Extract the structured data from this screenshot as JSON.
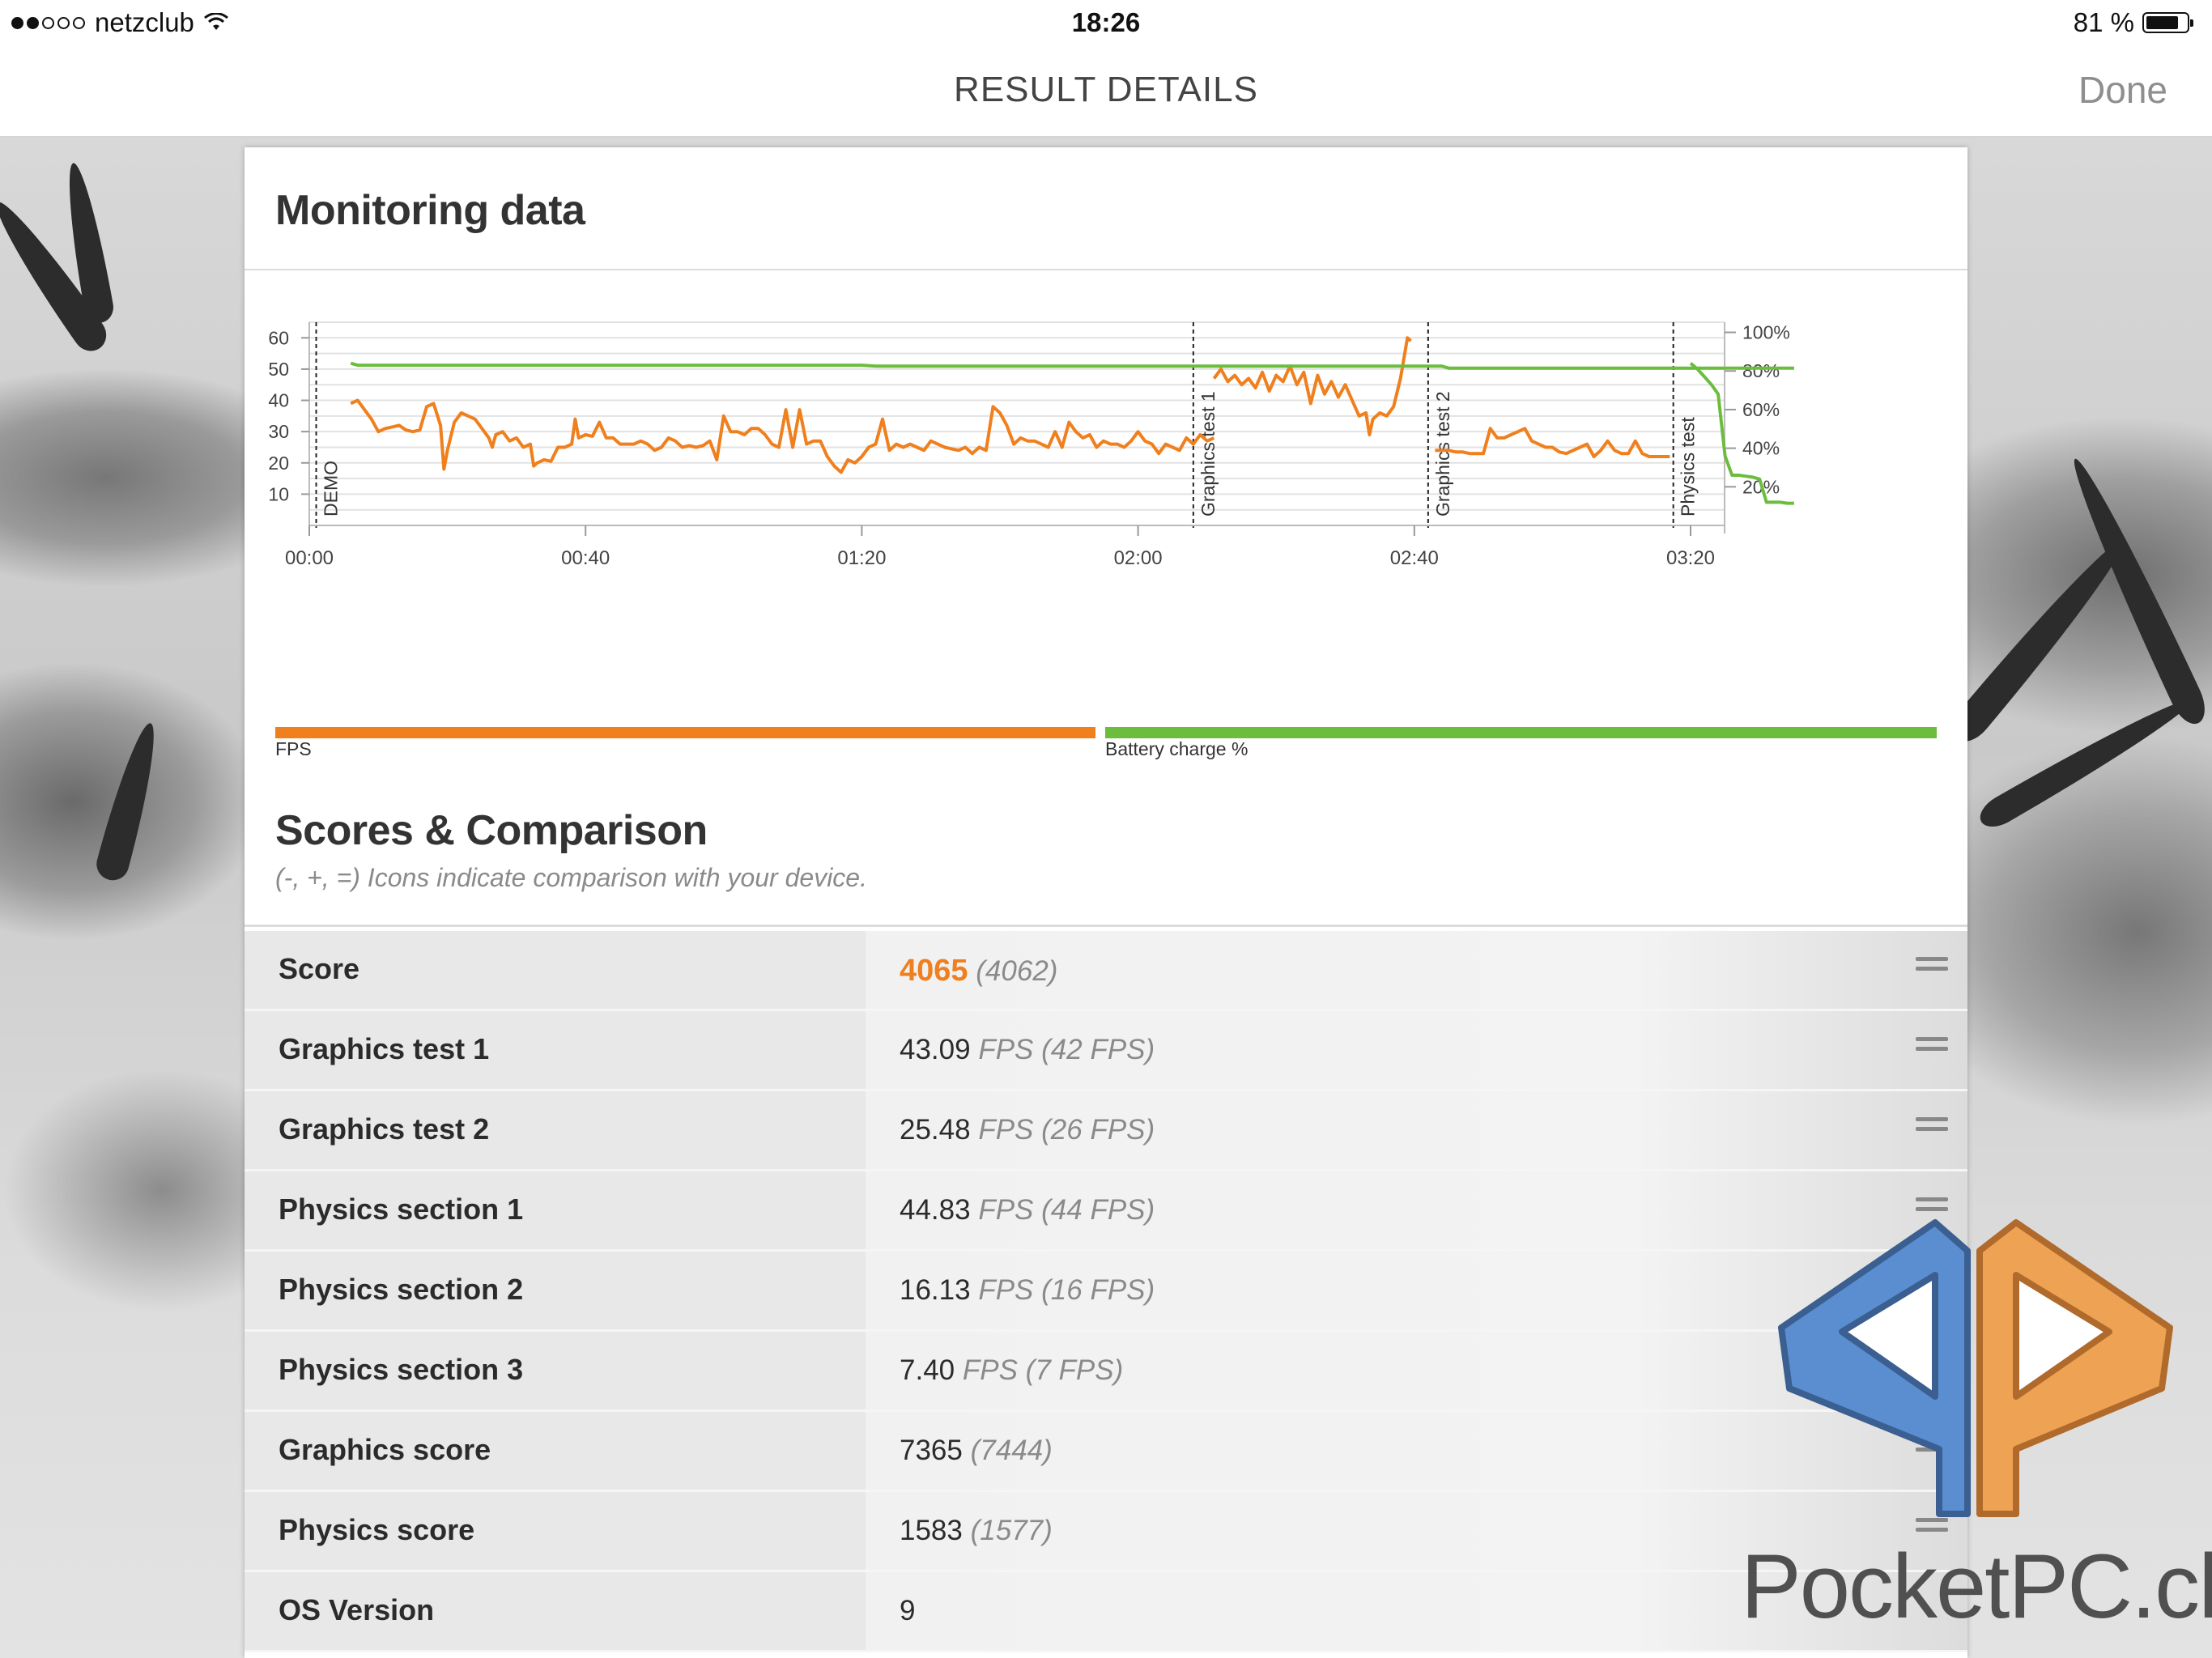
{
  "status_bar": {
    "carrier": "netzclub",
    "time": "18:26",
    "battery_text": "81 %",
    "battery_level": 0.81,
    "signal_bars_filled": 2,
    "signal_bars_total": 5
  },
  "nav": {
    "title": "RESULT DETAILS",
    "done_label": "Done"
  },
  "monitoring": {
    "heading": "Monitoring data",
    "fps_legend": "FPS",
    "battery_legend": "Battery charge %",
    "fps_color": "#f07f1d",
    "battery_color": "#6cbd3e"
  },
  "chart_data": {
    "type": "line",
    "x_unit": "mm:ss",
    "x_ticks": [
      "00:00",
      "00:40",
      "01:20",
      "02:00",
      "02:40",
      "03:20"
    ],
    "y_left_ticks": [
      "10",
      "20",
      "30",
      "40",
      "50",
      "60"
    ],
    "y_right_ticks": [
      "20%",
      "40%",
      "60%",
      "80%",
      "100%"
    ],
    "ylim_left": [
      0,
      65
    ],
    "ylim_right": [
      0,
      100
    ],
    "xlim_seconds": [
      0,
      215
    ],
    "markers": [
      {
        "label": "DEMO",
        "t": 1
      },
      {
        "label": "Graphics test 1",
        "t": 128
      },
      {
        "label": "Graphics test 2",
        "t": 162
      },
      {
        "label": "Physics test",
        "t": 197.5
      }
    ],
    "series": [
      {
        "name": "FPS",
        "axis": "left",
        "segments": [
          [
            [
              6,
              39
            ],
            [
              7,
              40
            ],
            [
              8,
              37
            ],
            [
              9,
              34
            ],
            [
              10,
              30
            ],
            [
              11,
              31
            ],
            [
              12,
              31.5
            ],
            [
              13,
              32
            ],
            [
              14,
              30.5
            ],
            [
              15,
              30
            ],
            [
              16,
              30.5
            ],
            [
              17,
              38
            ],
            [
              18,
              39
            ],
            [
              19,
              32
            ],
            [
              19.5,
              18
            ],
            [
              20,
              24
            ],
            [
              21,
              33
            ],
            [
              22,
              36
            ],
            [
              23,
              35
            ],
            [
              24,
              34
            ],
            [
              25,
              31
            ],
            [
              26,
              28
            ],
            [
              26.5,
              25
            ],
            [
              27,
              29
            ],
            [
              28,
              30
            ],
            [
              29,
              27
            ],
            [
              30,
              28
            ],
            [
              31,
              25
            ],
            [
              32,
              26
            ],
            [
              32.5,
              19
            ],
            [
              33,
              20
            ],
            [
              34,
              21
            ],
            [
              35,
              20.5
            ],
            [
              36,
              25
            ],
            [
              37,
              25
            ],
            [
              38,
              26
            ],
            [
              38.5,
              34
            ],
            [
              39,
              28
            ],
            [
              40,
              29
            ],
            [
              41,
              28.5
            ],
            [
              42,
              33
            ],
            [
              43,
              28
            ],
            [
              44,
              28
            ],
            [
              45,
              26
            ],
            [
              46,
              26
            ],
            [
              47,
              26
            ],
            [
              48,
              27
            ],
            [
              49,
              26
            ],
            [
              50,
              24
            ],
            [
              51,
              25
            ],
            [
              52,
              28
            ],
            [
              53,
              27
            ],
            [
              54,
              25
            ],
            [
              55,
              25.5
            ],
            [
              56,
              25
            ],
            [
              57,
              25.5
            ],
            [
              58,
              27
            ],
            [
              59,
              21
            ],
            [
              60,
              35
            ],
            [
              61,
              30
            ],
            [
              62,
              30
            ],
            [
              63,
              29
            ],
            [
              64,
              31
            ],
            [
              65,
              31
            ],
            [
              66,
              29
            ],
            [
              67,
              26
            ],
            [
              68,
              25
            ],
            [
              69,
              37
            ],
            [
              70,
              25
            ],
            [
              71,
              37
            ],
            [
              72,
              26
            ],
            [
              73,
              27
            ],
            [
              74,
              27
            ],
            [
              75,
              22
            ],
            [
              76,
              19
            ],
            [
              77,
              17
            ],
            [
              78,
              21
            ],
            [
              79,
              20
            ],
            [
              80,
              22
            ],
            [
              81,
              25
            ],
            [
              82,
              26
            ],
            [
              83,
              34
            ],
            [
              84,
              24
            ],
            [
              85,
              26
            ],
            [
              86,
              25
            ],
            [
              87,
              26
            ],
            [
              88,
              25
            ],
            [
              89,
              24
            ],
            [
              90,
              27
            ],
            [
              91,
              26
            ],
            [
              92,
              25
            ],
            [
              93,
              24.5
            ],
            [
              94,
              24
            ],
            [
              95,
              25
            ],
            [
              96,
              23
            ],
            [
              97,
              25
            ],
            [
              98,
              24
            ],
            [
              99,
              38
            ],
            [
              100,
              36
            ],
            [
              101,
              32
            ],
            [
              102,
              26
            ],
            [
              103,
              28
            ],
            [
              104,
              27
            ],
            [
              105,
              27
            ],
            [
              106,
              26
            ],
            [
              107,
              25
            ],
            [
              108,
              30
            ],
            [
              109,
              25
            ],
            [
              110,
              33
            ],
            [
              111,
              30
            ],
            [
              112,
              28
            ],
            [
              113,
              29
            ],
            [
              114,
              25
            ],
            [
              115,
              27
            ],
            [
              116,
              26
            ],
            [
              117,
              26
            ],
            [
              118,
              25
            ],
            [
              119,
              27
            ],
            [
              120,
              30
            ],
            [
              121,
              27
            ],
            [
              122,
              26
            ],
            [
              123,
              23
            ],
            [
              124,
              26
            ],
            [
              125,
              25
            ],
            [
              126,
              24
            ],
            [
              127,
              28
            ],
            [
              128,
              26
            ],
            [
              129,
              29
            ],
            [
              130,
              27
            ],
            [
              131,
              28
            ]
          ],
          [
            [
              131,
              47
            ],
            [
              132,
              50
            ],
            [
              133,
              46
            ],
            [
              134,
              48
            ],
            [
              135,
              45
            ],
            [
              136,
              47
            ],
            [
              137,
              44
            ],
            [
              138,
              49
            ],
            [
              139,
              43
            ],
            [
              140,
              48
            ],
            [
              141,
              46
            ],
            [
              142,
              51
            ],
            [
              143,
              45
            ],
            [
              144,
              49
            ],
            [
              145,
              39
            ],
            [
              146,
              48
            ],
            [
              147,
              42
            ],
            [
              148,
              46
            ],
            [
              149,
              41
            ],
            [
              150,
              45
            ],
            [
              151,
              40
            ],
            [
              152,
              35
            ],
            [
              153,
              36
            ],
            [
              153.5,
              29
            ],
            [
              154,
              34
            ],
            [
              155,
              36
            ],
            [
              156,
              35
            ],
            [
              157,
              38
            ],
            [
              158,
              47
            ],
            [
              159,
              60
            ],
            [
              159.5,
              59
            ]
          ],
          [
            [
              163,
              24
            ],
            [
              164,
              24
            ],
            [
              165,
              24
            ],
            [
              166,
              23.5
            ],
            [
              167,
              23.5
            ],
            [
              168,
              23
            ],
            [
              169,
              23
            ],
            [
              170,
              23
            ],
            [
              171,
              31
            ],
            [
              172,
              28
            ],
            [
              173,
              28
            ],
            [
              174,
              29
            ],
            [
              175,
              30
            ],
            [
              176,
              31
            ],
            [
              177,
              27
            ],
            [
              178,
              26
            ],
            [
              179,
              25
            ],
            [
              180,
              25
            ],
            [
              181,
              23.5
            ],
            [
              182,
              23
            ],
            [
              183,
              24
            ],
            [
              184,
              25
            ],
            [
              185,
              26
            ],
            [
              186,
              22
            ],
            [
              187,
              24
            ],
            [
              188,
              27
            ],
            [
              189,
              24
            ],
            [
              190,
              23
            ],
            [
              191,
              23
            ],
            [
              192,
              27
            ],
            [
              193,
              23
            ],
            [
              194,
              22
            ],
            [
              195,
              22
            ],
            [
              196,
              22
            ],
            [
              197,
              22
            ]
          ]
        ]
      },
      {
        "name": "Battery charge %",
        "axis": "right",
        "segments": [
          [
            [
              6,
              84
            ],
            [
              7,
              83
            ],
            [
              60,
              83
            ],
            [
              80,
              83
            ],
            [
              82,
              82.5
            ],
            [
              160,
              82.5
            ],
            [
              164,
              82.5
            ],
            [
              165,
              81.5
            ],
            [
              215,
              81.5
            ]
          ],
          [
            [
              200,
              84
            ],
            [
              201,
              81
            ],
            [
              202,
              77
            ],
            [
              203,
              73
            ],
            [
              204,
              68
            ],
            [
              205,
              36
            ],
            [
              206,
              26
            ],
            [
              207,
              26
            ],
            [
              208,
              25.5
            ],
            [
              209,
              25
            ],
            [
              210,
              24
            ],
            [
              211,
              12
            ],
            [
              212,
              12
            ],
            [
              213,
              12
            ],
            [
              214,
              11.5
            ],
            [
              215,
              11.5
            ]
          ]
        ]
      }
    ],
    "grid": true,
    "legend_placement": "bottom"
  },
  "scores": {
    "heading": "Scores & Comparison",
    "subtitle": "(-, +, =) Icons indicate comparison with your device.",
    "rows": [
      {
        "label": "Score",
        "value": "4065",
        "unit": "",
        "compare": "(4062)",
        "icon": "equal-icon"
      },
      {
        "label": "Graphics test 1",
        "value": "43.09",
        "unit": "FPS",
        "compare": "(42 FPS)",
        "icon": "equal-icon"
      },
      {
        "label": "Graphics test 2",
        "value": "25.48",
        "unit": "FPS",
        "compare": "(26 FPS)",
        "icon": "equal-icon"
      },
      {
        "label": "Physics section 1",
        "value": "44.83",
        "unit": "FPS",
        "compare": "(44 FPS)",
        "icon": "equal-icon"
      },
      {
        "label": "Physics section 2",
        "value": "16.13",
        "unit": "FPS",
        "compare": "(16 FPS)",
        "icon": "equal-icon"
      },
      {
        "label": "Physics section 3",
        "value": "7.40",
        "unit": "FPS",
        "compare": "(7 FPS)",
        "icon": "equal-icon"
      },
      {
        "label": "Graphics score",
        "value": "7365",
        "unit": "",
        "compare": "(7444)",
        "icon": "equal-icon"
      },
      {
        "label": "Physics score",
        "value": "1583",
        "unit": "",
        "compare": "(1577)",
        "icon": "equal-icon"
      },
      {
        "label": "OS Version",
        "value": "9",
        "unit": "",
        "compare": "",
        "icon": ""
      }
    ]
  },
  "watermark": {
    "text": "PocketPC.ch"
  }
}
